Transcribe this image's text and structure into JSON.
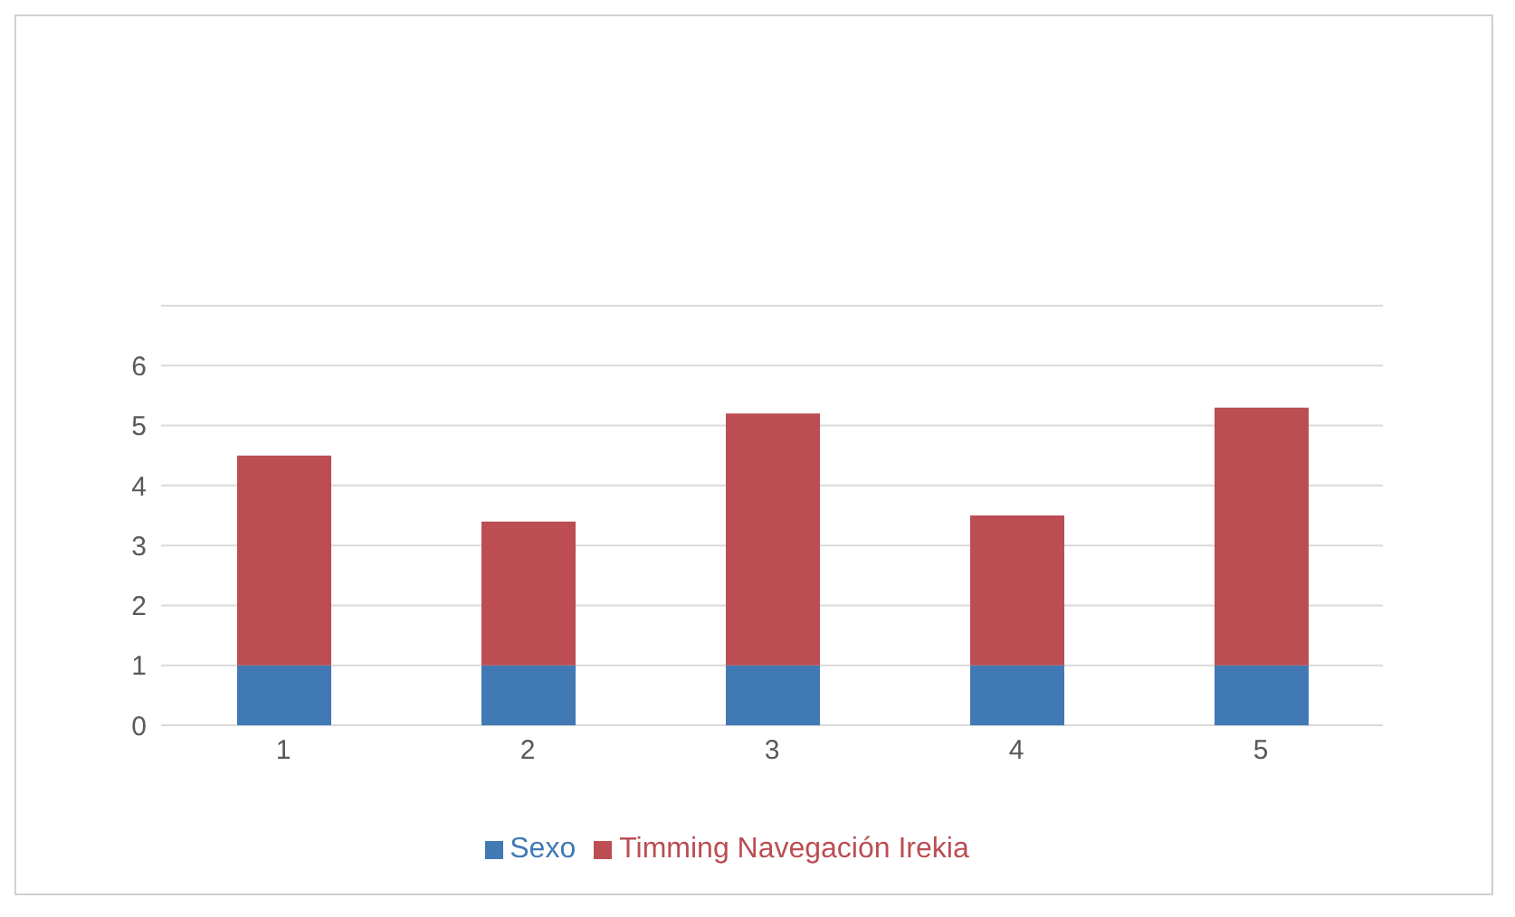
{
  "chart_data": {
    "type": "bar",
    "stacked": true,
    "categories": [
      "1",
      "2",
      "3",
      "4",
      "5"
    ],
    "series": [
      {
        "name": "Sexo",
        "color": "#4079b4",
        "values": [
          1,
          1,
          1,
          1,
          1
        ]
      },
      {
        "name": "Timming Navegación Irekia",
        "color": "#bb4d53",
        "values": [
          3.5,
          2.4,
          4.2,
          2.5,
          4.3
        ]
      }
    ],
    "ylim": [
      0,
      7
    ],
    "yticks": [
      0,
      1,
      2,
      3,
      4,
      5,
      6,
      {
        "value": 7,
        "label": null
      }
    ],
    "grid": "y",
    "legend": "bottom"
  }
}
